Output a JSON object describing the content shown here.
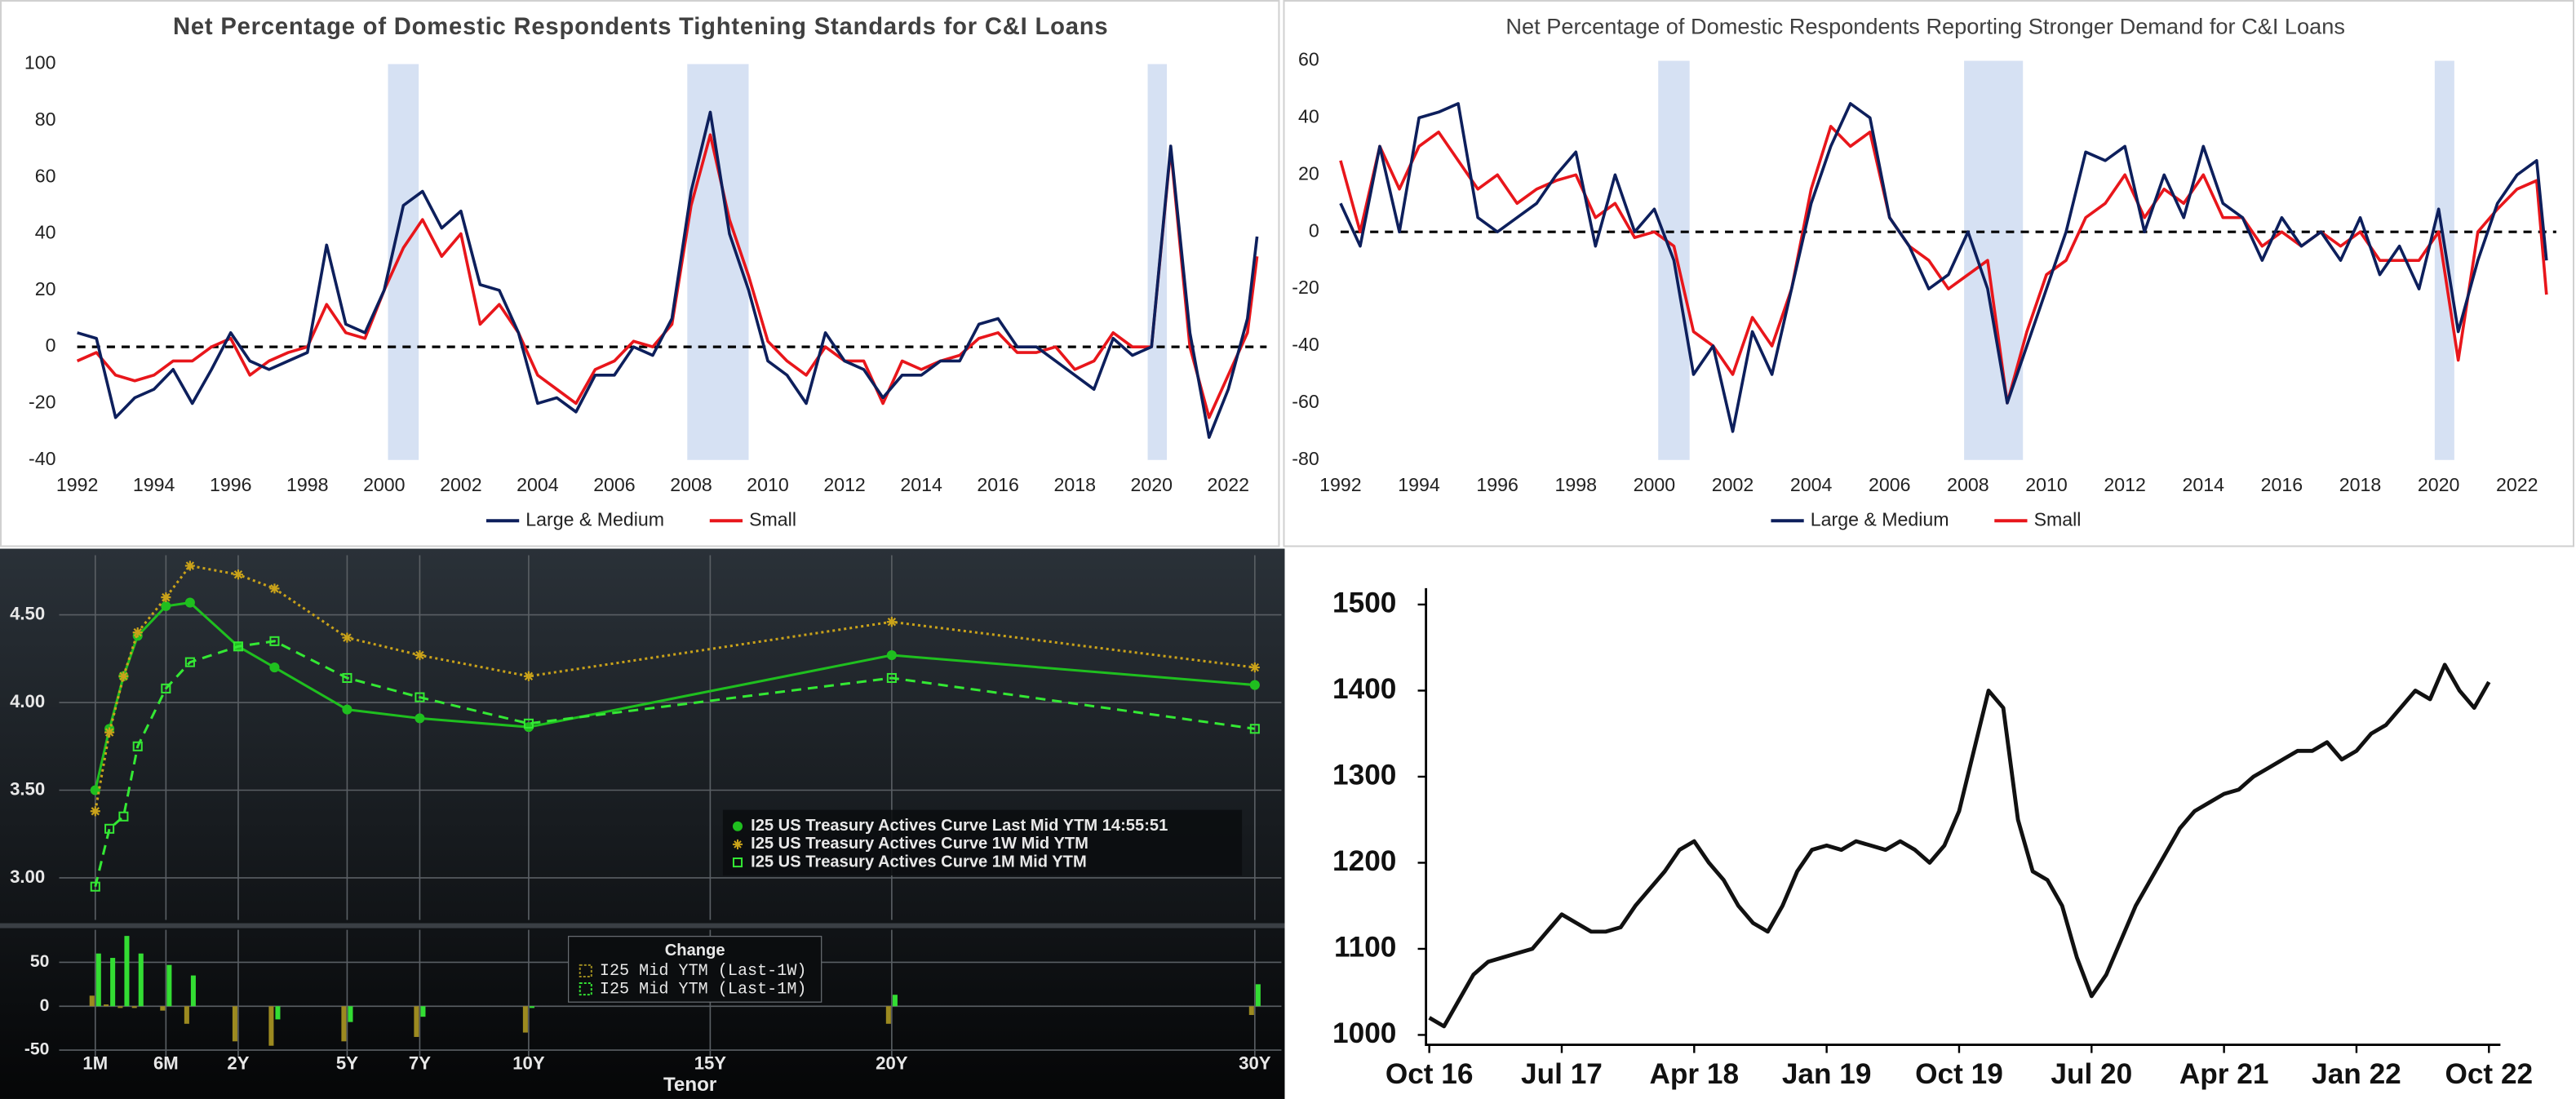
{
  "chart_data": [
    {
      "type": "line",
      "title": "Net Percentage of Domestic Respondents Tightening Standards for C&I Loans",
      "x": [
        1992,
        1992.5,
        1993,
        1993.5,
        1994,
        1994.5,
        1995,
        1995.5,
        1996,
        1996.5,
        1997,
        1997.5,
        1998,
        1998.5,
        1999,
        1999.5,
        2000,
        2000.5,
        2001,
        2001.5,
        2002,
        2002.5,
        2003,
        2003.5,
        2004,
        2004.5,
        2005,
        2005.5,
        2006,
        2006.5,
        2007,
        2007.5,
        2008,
        2008.5,
        2009,
        2009.5,
        2010,
        2010.5,
        2011,
        2011.5,
        2012,
        2012.5,
        2013,
        2013.5,
        2014,
        2014.5,
        2015,
        2015.5,
        2016,
        2016.5,
        2017,
        2017.5,
        2018,
        2018.5,
        2019,
        2019.5,
        2020,
        2020.5,
        2021,
        2021.5,
        2022,
        2022.5,
        2022.75
      ],
      "series": [
        {
          "name": "Large & Medium",
          "color": "#0d1f5c",
          "values": [
            5,
            3,
            -25,
            -18,
            -15,
            -8,
            -20,
            -8,
            5,
            -5,
            -8,
            -5,
            -2,
            36,
            8,
            5,
            20,
            50,
            55,
            42,
            48,
            22,
            20,
            5,
            -20,
            -18,
            -23,
            -10,
            -10,
            0,
            -3,
            10,
            55,
            83,
            40,
            20,
            -5,
            -10,
            -20,
            5,
            -5,
            -8,
            -18,
            -10,
            -10,
            -5,
            -5,
            8,
            10,
            0,
            0,
            -5,
            -10,
            -15,
            3,
            -3,
            0,
            71,
            5,
            -32,
            -15,
            10,
            39
          ]
        },
        {
          "name": "Small",
          "color": "#e8161b",
          "values": [
            -5,
            -2,
            -10,
            -12,
            -10,
            -5,
            -5,
            0,
            3,
            -10,
            -5,
            -2,
            0,
            15,
            5,
            3,
            20,
            35,
            45,
            32,
            40,
            8,
            15,
            5,
            -10,
            -15,
            -20,
            -8,
            -5,
            2,
            0,
            8,
            50,
            75,
            45,
            25,
            2,
            -5,
            -10,
            0,
            -5,
            -5,
            -20,
            -5,
            -8,
            -5,
            -3,
            3,
            5,
            -2,
            -2,
            0,
            -8,
            -5,
            5,
            0,
            0,
            70,
            0,
            -25,
            -10,
            5,
            32
          ]
        }
      ],
      "xlim": [
        1992,
        2023
      ],
      "xticks": [
        1992,
        1994,
        1996,
        1998,
        2000,
        2002,
        2004,
        2006,
        2008,
        2010,
        2012,
        2014,
        2016,
        2018,
        2020,
        2022
      ],
      "ylim": [
        -40,
        100
      ],
      "yticks": [
        -40,
        -20,
        0,
        20,
        40,
        60,
        80,
        100
      ],
      "shaded": [
        [
          2000.1,
          2000.9
        ],
        [
          2007.9,
          2009.5
        ],
        [
          2019.9,
          2020.4
        ]
      ],
      "shade_color": "#d6e1f3",
      "hline": 0,
      "legend": "bottom"
    },
    {
      "type": "line",
      "title": "Net Percentage of Domestic Respondents Reporting Stronger Demand for C&I Loans",
      "x": [
        1992,
        1992.5,
        1993,
        1993.5,
        1994,
        1994.5,
        1995,
        1995.5,
        1996,
        1996.5,
        1997,
        1997.5,
        1998,
        1998.5,
        1999,
        1999.5,
        2000,
        2000.5,
        2001,
        2001.5,
        2002,
        2002.5,
        2003,
        2003.5,
        2004,
        2004.5,
        2005,
        2005.5,
        2006,
        2006.5,
        2007,
        2007.5,
        2008,
        2008.5,
        2009,
        2009.5,
        2010,
        2010.5,
        2011,
        2011.5,
        2012,
        2012.5,
        2013,
        2013.5,
        2014,
        2014.5,
        2015,
        2015.5,
        2016,
        2016.5,
        2017,
        2017.5,
        2018,
        2018.5,
        2019,
        2019.5,
        2020,
        2020.5,
        2021,
        2021.5,
        2022,
        2022.5,
        2022.75
      ],
      "series": [
        {
          "name": "Large & Medium",
          "color": "#0d1f5c",
          "values": [
            10,
            -5,
            30,
            0,
            40,
            42,
            45,
            5,
            0,
            5,
            10,
            20,
            28,
            -5,
            20,
            0,
            8,
            -10,
            -50,
            -40,
            -70,
            -35,
            -50,
            -20,
            10,
            30,
            45,
            40,
            5,
            -5,
            -20,
            -15,
            0,
            -20,
            -60,
            -40,
            -20,
            0,
            28,
            25,
            30,
            0,
            20,
            5,
            30,
            10,
            5,
            -10,
            5,
            -5,
            0,
            -10,
            5,
            -15,
            -5,
            -20,
            8,
            -35,
            -10,
            10,
            20,
            25,
            -10
          ]
        },
        {
          "name": "Small",
          "color": "#e8161b",
          "values": [
            25,
            0,
            30,
            15,
            30,
            35,
            25,
            15,
            20,
            10,
            15,
            18,
            20,
            5,
            10,
            -2,
            0,
            -5,
            -35,
            -40,
            -50,
            -30,
            -40,
            -20,
            15,
            37,
            30,
            35,
            5,
            -5,
            -10,
            -20,
            -15,
            -10,
            -60,
            -35,
            -15,
            -10,
            5,
            10,
            20,
            5,
            15,
            10,
            20,
            5,
            5,
            -5,
            0,
            -5,
            0,
            -5,
            0,
            -10,
            -10,
            -10,
            0,
            -45,
            0,
            8,
            15,
            18,
            -22
          ]
        }
      ],
      "xlim": [
        1992,
        2023
      ],
      "xticks": [
        1992,
        1994,
        1996,
        1998,
        2000,
        2002,
        2004,
        2006,
        2008,
        2010,
        2012,
        2014,
        2016,
        2018,
        2020,
        2022
      ],
      "ylim": [
        -80,
        60
      ],
      "yticks": [
        -80,
        -60,
        -40,
        -20,
        0,
        20,
        40,
        60
      ],
      "shaded": [
        [
          2000.1,
          2000.9
        ],
        [
          2007.9,
          2009.4
        ],
        [
          2019.9,
          2020.4
        ]
      ],
      "shade_color": "#d6e1f3",
      "hline": 0,
      "legend": "bottom"
    },
    {
      "type": "line",
      "x": [
        0.0833,
        0.1667,
        0.25,
        0.3333,
        0.5,
        1,
        2,
        3,
        5,
        7,
        10,
        20,
        30
      ],
      "series": [
        {
          "name": "I25 US Treasury Actives Curve Last Mid YTM 14:55:51",
          "color": "#1fbf1f",
          "dash": "solid",
          "marker": "circle",
          "values": [
            3.5,
            3.85,
            4.15,
            4.38,
            4.55,
            4.57,
            4.32,
            4.2,
            3.96,
            3.91,
            3.86,
            4.27,
            4.1
          ]
        },
        {
          "name": "I25 US Treasury Actives Curve 1W Mid YTM",
          "color": "#c9a21a",
          "dash": "dotted",
          "marker": "asterisk",
          "values": [
            3.38,
            3.83,
            4.15,
            4.4,
            4.6,
            4.78,
            4.73,
            4.65,
            4.37,
            4.27,
            4.15,
            4.46,
            4.2
          ]
        },
        {
          "name": "I25 US Treasury Actives Curve 1M Mid YTM",
          "color": "#34e834",
          "dash": "dashed",
          "marker": "square",
          "values": [
            2.95,
            3.28,
            3.35,
            3.75,
            4.08,
            4.23,
            4.32,
            4.35,
            4.14,
            4.03,
            3.88,
            4.14,
            3.85
          ]
        }
      ],
      "ylim": [
        2.76,
        4.84
      ],
      "yticks": [
        {
          "value": 3,
          "label": "3.00"
        },
        {
          "value": 3.5,
          "label": "3.50"
        },
        {
          "value": 4,
          "label": "4.00"
        },
        {
          "value": 4.5,
          "label": "4.50"
        }
      ],
      "grid": true,
      "legend": "lower right"
    },
    {
      "type": "bar",
      "legend_title": "Change",
      "xlabel": "Tenor",
      "x": [
        0.0833,
        0.1667,
        0.25,
        0.3333,
        0.5,
        1,
        2,
        3,
        5,
        7,
        10,
        20,
        30
      ],
      "series": [
        {
          "name": "I25 Mid YTM (Last-1W)",
          "color": "#9c8a20",
          "values": [
            12,
            2,
            -2,
            -2,
            -5,
            -20,
            -40,
            -45,
            -40,
            -35,
            -30,
            -20,
            -10
          ]
        },
        {
          "name": "I25 Mid YTM (Last-1M)",
          "color": "#33dd33",
          "values": [
            60,
            55,
            80,
            60,
            47,
            35,
            0,
            -15,
            -18,
            -12,
            -2,
            13,
            25
          ]
        }
      ],
      "xticks": [
        {
          "value": 0.0833,
          "label": "1M"
        },
        {
          "value": 0.5,
          "label": "6M"
        },
        {
          "value": 2,
          "label": "2Y"
        },
        {
          "value": 5,
          "label": "5Y"
        },
        {
          "value": 7,
          "label": "7Y"
        },
        {
          "value": 10,
          "label": "10Y"
        },
        {
          "value": 15,
          "label": "15Y"
        },
        {
          "value": 20,
          "label": "20Y"
        },
        {
          "value": 30,
          "label": "30Y"
        }
      ],
      "ylim": [
        -57,
        87
      ],
      "yticks": [
        -50,
        0,
        50
      ],
      "grid": true,
      "legend": "top"
    },
    {
      "type": "line",
      "x": [
        "2016-10",
        "2016-11",
        "2016-12",
        "2017-01",
        "2017-02",
        "2017-03",
        "2017-04",
        "2017-05",
        "2017-06",
        "2017-07",
        "2017-08",
        "2017-09",
        "2017-10",
        "2017-11",
        "2017-12",
        "2018-01",
        "2018-02",
        "2018-03",
        "2018-04",
        "2018-05",
        "2018-06",
        "2018-07",
        "2018-08",
        "2018-09",
        "2018-10",
        "2018-11",
        "2018-12",
        "2019-01",
        "2019-02",
        "2019-03",
        "2019-04",
        "2019-05",
        "2019-06",
        "2019-07",
        "2019-08",
        "2019-09",
        "2019-10",
        "2019-11",
        "2019-12",
        "2020-01",
        "2020-02",
        "2020-03",
        "2020-04",
        "2020-05",
        "2020-06",
        "2020-07",
        "2020-08",
        "2020-09",
        "2020-10",
        "2020-11",
        "2020-12",
        "2021-01",
        "2021-02",
        "2021-03",
        "2021-04",
        "2021-05",
        "2021-06",
        "2021-07",
        "2021-08",
        "2021-09",
        "2021-10",
        "2021-11",
        "2021-12",
        "2022-01",
        "2022-02",
        "2022-03",
        "2022-04",
        "2022-05",
        "2022-06",
        "2022-07",
        "2022-08",
        "2022-09",
        "2022-10"
      ],
      "values": [
        1020,
        1010,
        1040,
        1070,
        1085,
        1090,
        1095,
        1100,
        1120,
        1140,
        1130,
        1120,
        1120,
        1125,
        1150,
        1170,
        1190,
        1215,
        1225,
        1200,
        1180,
        1150,
        1130,
        1120,
        1150,
        1190,
        1215,
        1220,
        1215,
        1225,
        1220,
        1215,
        1225,
        1215,
        1200,
        1220,
        1260,
        1330,
        1400,
        1380,
        1250,
        1190,
        1180,
        1150,
        1090,
        1045,
        1070,
        1110,
        1150,
        1180,
        1210,
        1240,
        1260,
        1270,
        1280,
        1285,
        1300,
        1310,
        1320,
        1330,
        1330,
        1340,
        1320,
        1330,
        1350,
        1360,
        1380,
        1400,
        1390,
        1430,
        1400,
        1380,
        1410
      ],
      "color": "#111111",
      "xticks": [
        {
          "value": "2016-10",
          "label": "Oct 16"
        },
        {
          "value": "2017-07",
          "label": "Jul 17"
        },
        {
          "value": "2018-04",
          "label": "Apr 18"
        },
        {
          "value": "2019-01",
          "label": "Jan 19"
        },
        {
          "value": "2019-10",
          "label": "Oct 19"
        },
        {
          "value": "2020-07",
          "label": "Jul 20"
        },
        {
          "value": "2021-04",
          "label": "Apr 21"
        },
        {
          "value": "2022-01",
          "label": "Jan 22"
        },
        {
          "value": "2022-10",
          "label": "Oct 22"
        }
      ],
      "ylim": [
        1000,
        1500
      ],
      "yticks": [
        1000,
        1100,
        1200,
        1300,
        1400,
        1500
      ]
    }
  ]
}
